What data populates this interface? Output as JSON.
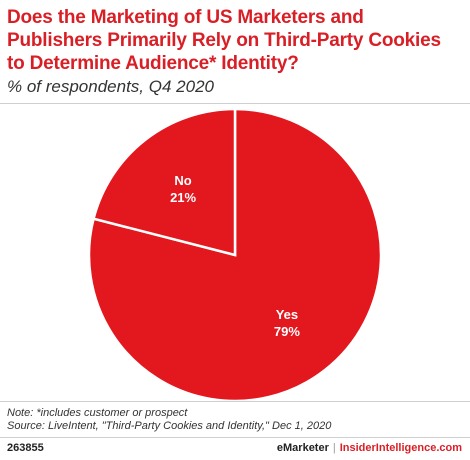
{
  "header": {
    "title": "Does the Marketing of US Marketers and\nPublishers Primarily Rely on Third-Party Cookies\nto Determine Audience* Identity?",
    "subtitle": "% of respondents, Q4 2020"
  },
  "chart_data": {
    "type": "pie",
    "categories": [
      "Yes",
      "No"
    ],
    "values": [
      79,
      21
    ],
    "labels": [
      "79%",
      "21%"
    ],
    "colors": [
      "#e3171e",
      "#e3171e"
    ],
    "slice_border_color": "#ffffff",
    "start": "12 o'clock, clockwise"
  },
  "footer": {
    "note": "Note: *includes customer or prospect",
    "source": "Source: LiveIntent, \"Third-Party Cookies and Identity,\" Dec 1, 2020",
    "chart_id": "263855",
    "brand_left": "eMarketer",
    "brand_sep": "|",
    "brand_right": "InsiderIntelligence.com"
  }
}
